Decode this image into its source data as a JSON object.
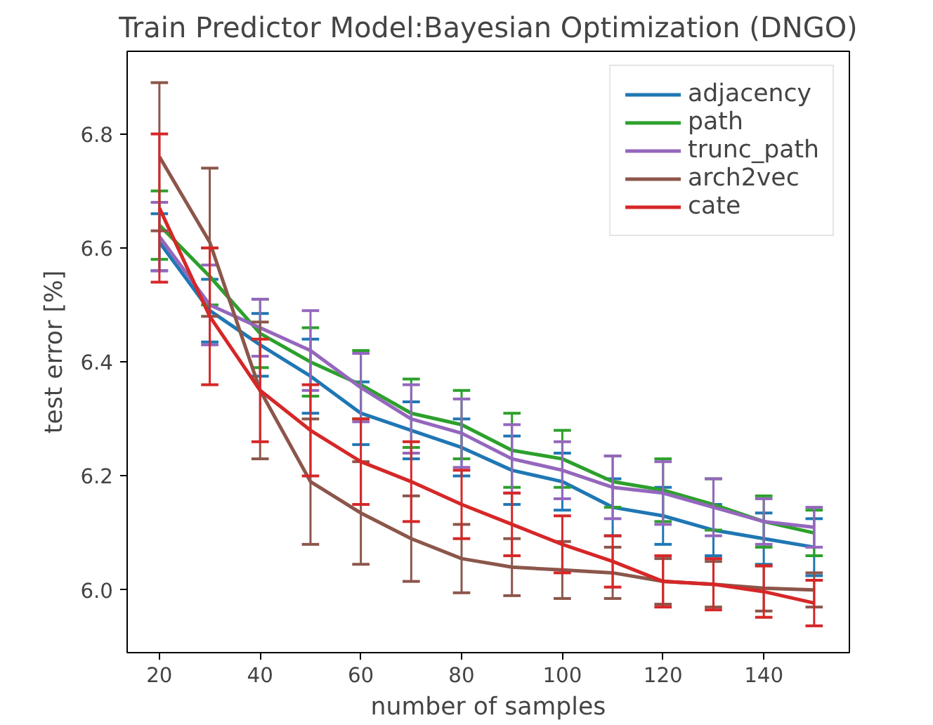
{
  "chart_data": {
    "type": "line",
    "title": "Train Predictor Model:Bayesian Optimization (DNGO)",
    "xlabel": "number of samples",
    "ylabel": "test error [%]",
    "x": [
      20,
      30,
      40,
      50,
      60,
      70,
      80,
      90,
      100,
      110,
      120,
      130,
      140,
      150
    ],
    "series": [
      {
        "name": "adjacency",
        "color": "#1f77b4",
        "values": [
          6.61,
          6.49,
          6.43,
          6.375,
          6.31,
          6.28,
          6.25,
          6.21,
          6.19,
          6.145,
          6.13,
          6.105,
          6.09,
          6.075
        ],
        "errors": [
          0.05,
          0.055,
          0.055,
          0.065,
          0.055,
          0.05,
          0.05,
          0.06,
          0.05,
          0.05,
          0.05,
          0.045,
          0.045,
          0.05
        ]
      },
      {
        "name": "path",
        "color": "#2ca02c",
        "values": [
          6.64,
          6.55,
          6.45,
          6.4,
          6.36,
          6.31,
          6.29,
          6.245,
          6.23,
          6.19,
          6.175,
          6.15,
          6.12,
          6.1
        ],
        "errors": [
          0.06,
          0.05,
          0.06,
          0.06,
          0.06,
          0.06,
          0.06,
          0.065,
          0.05,
          0.045,
          0.055,
          0.045,
          0.045,
          0.04
        ]
      },
      {
        "name": "trunc_path",
        "color": "#9467bd",
        "values": [
          6.62,
          6.5,
          6.46,
          6.42,
          6.355,
          6.3,
          6.275,
          6.23,
          6.21,
          6.18,
          6.17,
          6.145,
          6.12,
          6.11
        ],
        "errors": [
          0.06,
          0.07,
          0.05,
          0.07,
          0.06,
          0.06,
          0.06,
          0.06,
          0.05,
          0.055,
          0.055,
          0.05,
          0.04,
          0.035
        ]
      },
      {
        "name": "arch2vec",
        "color": "#8c564b",
        "values": [
          6.76,
          6.61,
          6.35,
          6.19,
          6.135,
          6.09,
          6.055,
          6.04,
          6.035,
          6.03,
          6.015,
          6.01,
          6.003,
          6.0
        ],
        "errors": [
          0.13,
          0.13,
          0.12,
          0.11,
          0.09,
          0.075,
          0.06,
          0.05,
          0.05,
          0.045,
          0.04,
          0.04,
          0.04,
          0.03
        ]
      },
      {
        "name": "cate",
        "color": "#d62728",
        "values": [
          6.67,
          6.48,
          6.35,
          6.28,
          6.225,
          6.19,
          6.15,
          6.115,
          6.08,
          6.05,
          6.015,
          6.01,
          5.997,
          5.977
        ],
        "errors": [
          0.13,
          0.12,
          0.09,
          0.08,
          0.075,
          0.07,
          0.06,
          0.055,
          0.05,
          0.045,
          0.045,
          0.045,
          0.045,
          0.04
        ]
      }
    ],
    "xlim": [
      13.6,
      157
    ],
    "ylim": [
      5.89,
      6.945
    ],
    "xticks": [
      20,
      40,
      60,
      80,
      100,
      120,
      140
    ],
    "yticks": [
      {
        "value": 6.0,
        "label": "6.0"
      },
      {
        "value": 6.2,
        "label": "6.2"
      },
      {
        "value": 6.4,
        "label": "6.4"
      },
      {
        "value": 6.6,
        "label": "6.6"
      },
      {
        "value": 6.8,
        "label": "6.8"
      }
    ],
    "legend": "top right",
    "grid": false,
    "marker": "none",
    "line_style": "solid"
  }
}
